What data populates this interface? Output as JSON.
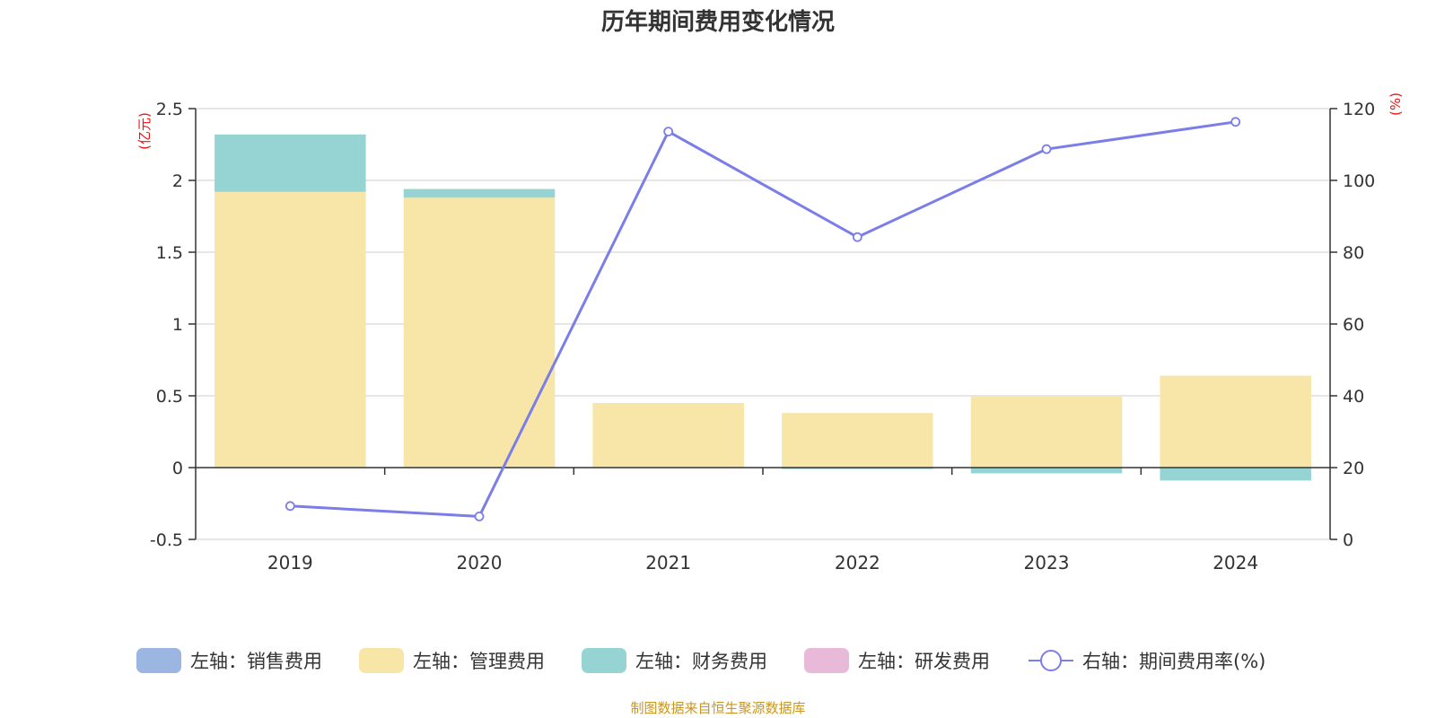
{
  "title": "历年期间费用变化情况",
  "source": "制图数据来自恒生聚源数据库",
  "colors": {
    "sales": "#9bb6e0",
    "admin": "#f7e6a7",
    "finance": "#96d4d4",
    "rnd": "#e8b9d9",
    "rate": "#7b7ee8",
    "axis_unit": "#ee1111"
  },
  "chart_data": {
    "type": "bar",
    "stacked": true,
    "title": "历年期间费用变化情况",
    "categories": [
      "2019",
      "2020",
      "2021",
      "2022",
      "2023",
      "2024"
    ],
    "left_axis": {
      "unit": "(亿元)",
      "range": [
        -0.5,
        2.5
      ],
      "ticks": [
        "2.5",
        "2",
        "1.5",
        "1",
        "0.5",
        "0",
        "-0.5"
      ],
      "tick_values": [
        2.5,
        2,
        1.5,
        1,
        0.5,
        0,
        -0.5
      ]
    },
    "right_axis": {
      "unit": "(%)",
      "range": [
        0,
        120
      ],
      "ticks": [
        "120",
        "100",
        "80",
        "60",
        "40",
        "20",
        "0"
      ],
      "tick_values": [
        120,
        100,
        80,
        60,
        40,
        20,
        0
      ]
    },
    "series": [
      {
        "name": "左轴：销售费用",
        "key": "sales",
        "axis": "left",
        "values": [
          0,
          0,
          0,
          0,
          0,
          0
        ]
      },
      {
        "name": "左轴：管理费用",
        "key": "admin",
        "axis": "left",
        "values": [
          1.92,
          1.88,
          0.45,
          0.38,
          0.5,
          0.64
        ]
      },
      {
        "name": "左轴：财务费用",
        "key": "finance",
        "axis": "left",
        "values": [
          0.4,
          0.06,
          0,
          -0.01,
          -0.04,
          -0.09
        ]
      },
      {
        "name": "左轴：研发费用",
        "key": "rnd",
        "axis": "left",
        "values": [
          0,
          0,
          0,
          0,
          0,
          0
        ]
      },
      {
        "name": "右轴：期间费用率(%)",
        "key": "rate",
        "axis": "right",
        "type": "line",
        "values": [
          9.3,
          6.4,
          113.6,
          84.2,
          108.7,
          116.3
        ]
      }
    ],
    "legend_position": "bottom",
    "grid": true
  }
}
